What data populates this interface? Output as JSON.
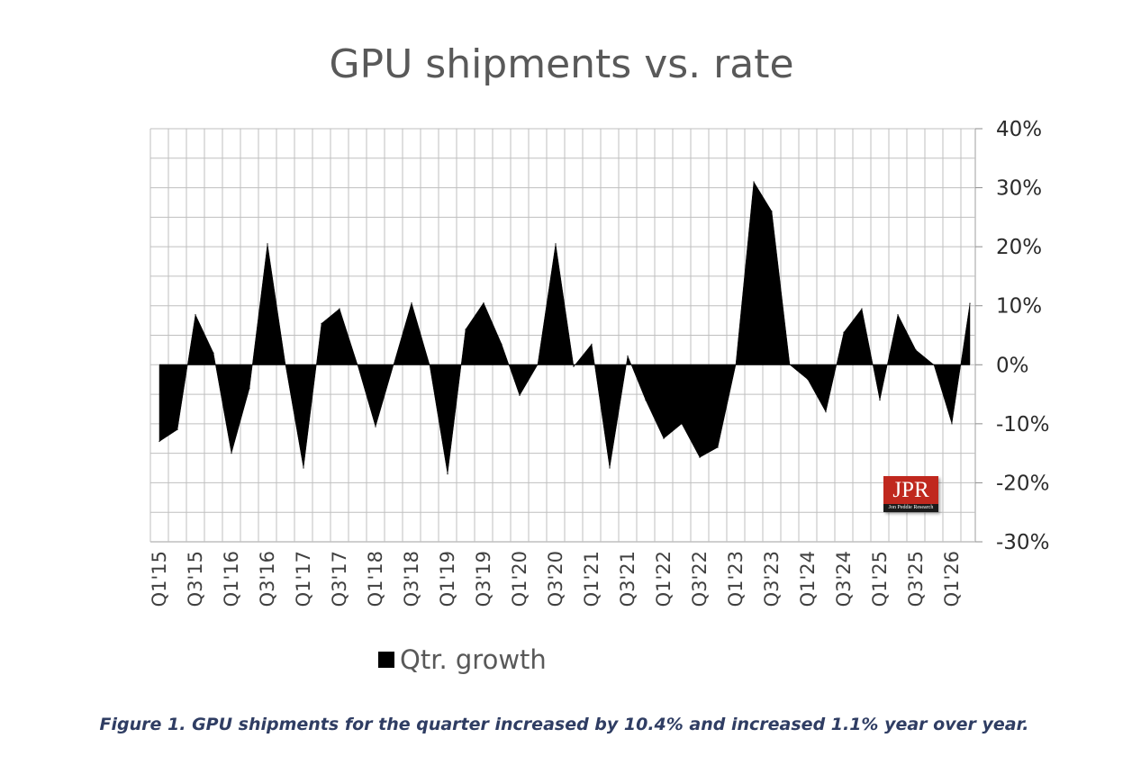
{
  "chart_data": {
    "type": "area",
    "title": "GPU shipments vs. rate",
    "xlabel": "",
    "ylabel": "",
    "ylim": [
      -0.3,
      0.4
    ],
    "yticks": [
      "40%",
      "30%",
      "20%",
      "10%",
      "0%",
      "-10%",
      "-20%",
      "-30%"
    ],
    "y_axis_position": "right",
    "grid": true,
    "legend_position": "bottom",
    "quarters": [
      "Q1'15",
      "Q2'15",
      "Q3'15",
      "Q4'15",
      "Q1'16",
      "Q2'16",
      "Q3'16",
      "Q4'16",
      "Q1'17",
      "Q2'17",
      "Q3'17",
      "Q4'17",
      "Q1'18",
      "Q2'18",
      "Q3'18",
      "Q4'18",
      "Q1'19",
      "Q2'19",
      "Q3'19",
      "Q4'19",
      "Q1'20",
      "Q2'20",
      "Q3'20",
      "Q4'20",
      "Q1'21",
      "Q2'21",
      "Q3'21",
      "Q4'21",
      "Q1'22",
      "Q2'22",
      "Q3'22",
      "Q4'22",
      "Q1'23",
      "Q2'23",
      "Q3'23",
      "Q4'23",
      "Q1'24",
      "Q2'24",
      "Q3'24",
      "Q4'24",
      "Q1'25",
      "Q2'25",
      "Q3'25",
      "Q4'25",
      "Q1'26",
      "Q2'26"
    ],
    "tick_labels": [
      "Q1'15",
      "Q3'15",
      "Q1'16",
      "Q3'16",
      "Q1'17",
      "Q3'17",
      "Q1'18",
      "Q3'18",
      "Q1'19",
      "Q3'19",
      "Q1'20",
      "Q3'20",
      "Q1'21",
      "Q3'21",
      "Q1'22",
      "Q3'22",
      "Q1'23",
      "Q3'23",
      "Q1'24",
      "Q3'24",
      "Q1'25",
      "Q3'25",
      "Q1'26"
    ],
    "series": [
      {
        "name": "Qtr. growth",
        "color": "#000000",
        "values": [
          -0.13,
          -0.11,
          0.085,
          0.02,
          -0.15,
          -0.04,
          0.205,
          0.0,
          -0.175,
          0.07,
          0.095,
          0.0,
          -0.105,
          0.0,
          0.105,
          0.0,
          -0.185,
          0.06,
          0.105,
          0.035,
          -0.052,
          0.0,
          0.205,
          -0.003,
          0.035,
          -0.175,
          0.015,
          -0.06,
          -0.125,
          -0.1,
          -0.157,
          -0.14,
          0.0,
          0.31,
          0.26,
          0.0,
          -0.025,
          -0.08,
          0.055,
          0.095,
          -0.06,
          0.085,
          0.025,
          0.0,
          -0.1,
          0.104
        ]
      }
    ]
  },
  "legend": {
    "label": "Qtr. growth"
  },
  "caption": "Figure 1. GPU shipments for the quarter increased by 10.4% and increased 1.1% year over year.",
  "logo": {
    "text": "JPR",
    "subtext": "Jon Peddie Research"
  }
}
